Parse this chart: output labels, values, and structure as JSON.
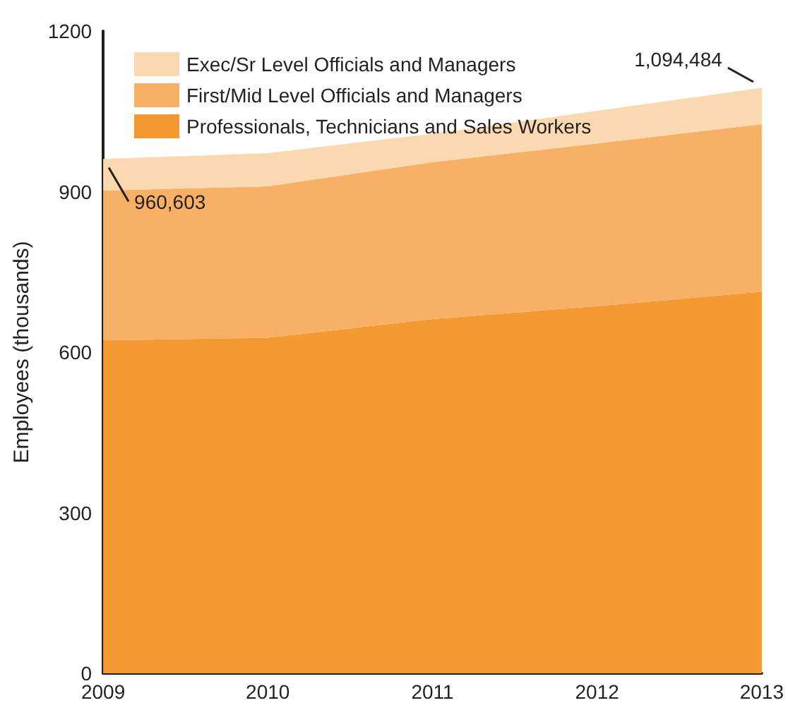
{
  "chart_data": {
    "type": "area",
    "stacked": true,
    "ylabel": "Employees (thousands)",
    "categories": [
      "2009",
      "2010",
      "2011",
      "2012",
      "2013"
    ],
    "series": [
      {
        "name": "Professionals, Technicians and Sales Workers",
        "color": "#f59a33",
        "values": [
          622,
          627,
          662,
          686,
          713
        ]
      },
      {
        "name": "First/Mid Level Officials and Managers",
        "color": "#f8b066",
        "values": [
          280,
          283,
          293,
          304,
          313
        ]
      },
      {
        "name": "Exec/Sr Level Officials and Managers",
        "color": "#fad8b0",
        "values": [
          59,
          62,
          53,
          61,
          68
        ]
      }
    ],
    "ylim": [
      0,
      1200
    ],
    "yticks": [
      0,
      300,
      600,
      900,
      1200
    ],
    "grid": false,
    "legend": "top left",
    "annotations": [
      {
        "text": "960,603",
        "x": "2009",
        "y": 960.6
      },
      {
        "text": "1,094,484",
        "x": "2013",
        "y": 1094.5
      }
    ]
  }
}
